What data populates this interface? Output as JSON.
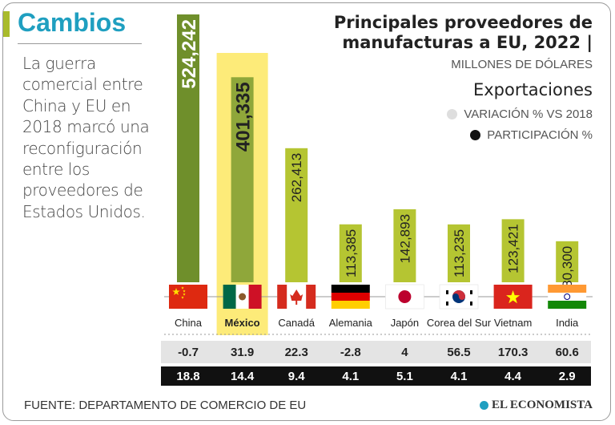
{
  "header": {
    "section_title": "Cambios",
    "intro_text": "La guerra comercial entre China y EU en 2018 marcó una reconfiguración entre los proveedores de Estados Unidos."
  },
  "chart_data": {
    "type": "bar",
    "title_line1": "Principales proveedores de",
    "title_line2": "manufacturas a EU, 2022 |",
    "unit": "MILLONES DE DÓLARES",
    "legend": {
      "title": "Exportaciones",
      "variation_label": "VARIACIÓN % VS 2018",
      "participation_label": "PARTICIPACIÓN %"
    },
    "categories": [
      "China",
      "México",
      "Canadá",
      "Alemania",
      "Japón",
      "Corea del Sur",
      "Vietnam",
      "India"
    ],
    "values": [
      524242,
      401335,
      262413,
      113385,
      142893,
      113235,
      123421,
      80300
    ],
    "value_labels": [
      "524,242",
      "401,335",
      "262,413",
      "113,385",
      "142,893",
      "113,235",
      "123,421",
      "80,300"
    ],
    "variation": [
      "-0.7",
      "31.9",
      "22.3",
      "-2.8",
      "4",
      "56.5",
      "170.3",
      "60.6"
    ],
    "participation": [
      "18.8",
      "14.4",
      "9.4",
      "4.1",
      "5.1",
      "4.1",
      "4.4",
      "2.9"
    ],
    "highlight": "México",
    "ylim": [
      0,
      524242
    ]
  },
  "colors": {
    "bar_primary": "#6f8f2b",
    "bar_secondary": "#b5c532",
    "highlight": "#fde96a",
    "accent": "#1f9fc0"
  },
  "footer": {
    "source": "FUENTE: DEPARTAMENTO DE COMERCIO DE EU",
    "brand": "EL ECONOMISTA"
  }
}
